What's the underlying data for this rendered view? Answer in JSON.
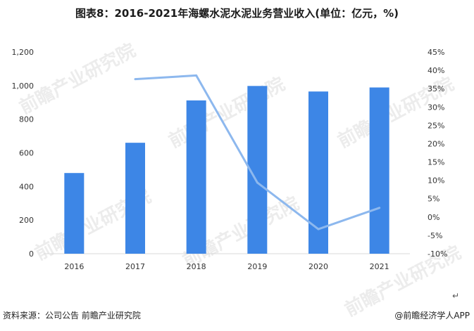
{
  "title": "图表8：2016-2021年海螺水泥水泥业务营业收入(单位：亿元，%)",
  "source": "资料来源：公司公告 前瞻产业研究院",
  "brand": "@前瞻经济学人APP",
  "return_mark": "↵",
  "watermark": "前瞻产业研究院",
  "colors": {
    "bar": "#3d86e6",
    "line": "#8db8ee",
    "axis": "#d9d9d9"
  },
  "chart_data": {
    "type": "bar+line",
    "categories": [
      "2016",
      "2017",
      "2018",
      "2019",
      "2020",
      "2021"
    ],
    "series": [
      {
        "type": "bar",
        "axis": "left",
        "values": [
          480,
          660,
          912,
          998,
          965,
          989
        ]
      },
      {
        "type": "line",
        "axis": "right",
        "values": [
          null,
          37.6,
          38.6,
          9.4,
          -3.3,
          2.5
        ]
      }
    ],
    "y_left": {
      "min": 0,
      "max": 1200,
      "ticks": [
        "0",
        "200",
        "400",
        "600",
        "800",
        "1,000",
        "1,200"
      ]
    },
    "y_right": {
      "min": -10,
      "max": 45,
      "ticks": [
        "-10%",
        "-5%",
        "0%",
        "5%",
        "10%",
        "15%",
        "20%",
        "25%",
        "30%",
        "35%",
        "40%",
        "45%"
      ]
    },
    "grid": false
  }
}
